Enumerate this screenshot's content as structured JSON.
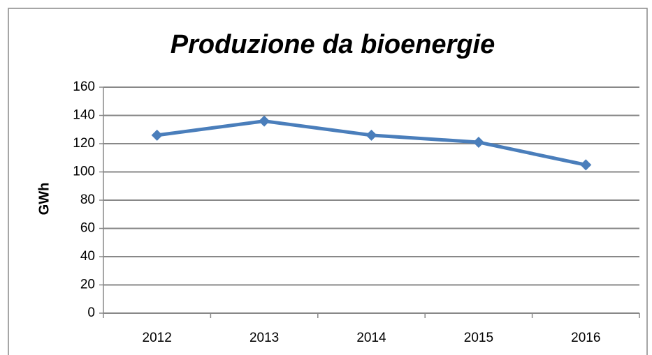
{
  "chart_data": {
    "type": "line",
    "title": "Produzione da bioenergie",
    "y_label": "GWh",
    "categories": [
      "2012",
      "2013",
      "2014",
      "2015",
      "2016"
    ],
    "series": [
      {
        "name": "Produzione da bioenergie",
        "color": "#4a7ebb",
        "values": [
          126,
          136,
          126,
          121,
          105
        ]
      }
    ],
    "ylim": [
      0,
      160
    ],
    "yticks": [
      0,
      20,
      40,
      60,
      80,
      100,
      120,
      140,
      160
    ],
    "grid": true
  }
}
